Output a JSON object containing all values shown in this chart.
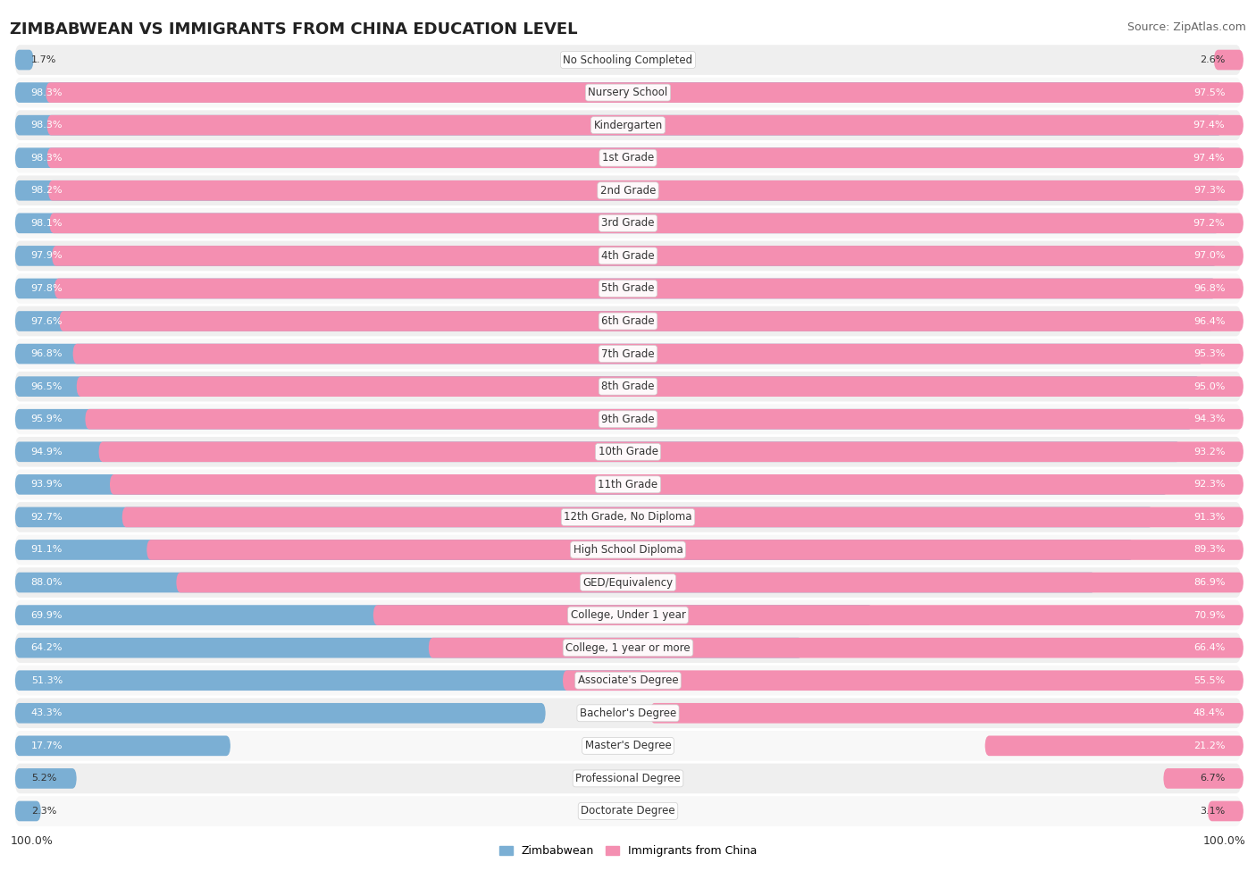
{
  "title": "ZIMBABWEAN VS IMMIGRANTS FROM CHINA EDUCATION LEVEL",
  "source": "Source: ZipAtlas.com",
  "categories": [
    "No Schooling Completed",
    "Nursery School",
    "Kindergarten",
    "1st Grade",
    "2nd Grade",
    "3rd Grade",
    "4th Grade",
    "5th Grade",
    "6th Grade",
    "7th Grade",
    "8th Grade",
    "9th Grade",
    "10th Grade",
    "11th Grade",
    "12th Grade, No Diploma",
    "High School Diploma",
    "GED/Equivalency",
    "College, Under 1 year",
    "College, 1 year or more",
    "Associate's Degree",
    "Bachelor's Degree",
    "Master's Degree",
    "Professional Degree",
    "Doctorate Degree"
  ],
  "zimbabwean": [
    1.7,
    98.3,
    98.3,
    98.3,
    98.2,
    98.1,
    97.9,
    97.8,
    97.6,
    96.8,
    96.5,
    95.9,
    94.9,
    93.9,
    92.7,
    91.1,
    88.0,
    69.9,
    64.2,
    51.3,
    43.3,
    17.7,
    5.2,
    2.3
  ],
  "china": [
    2.6,
    97.5,
    97.4,
    97.4,
    97.3,
    97.2,
    97.0,
    96.8,
    96.4,
    95.3,
    95.0,
    94.3,
    93.2,
    92.3,
    91.3,
    89.3,
    86.9,
    70.9,
    66.4,
    55.5,
    48.4,
    21.2,
    6.7,
    3.1
  ],
  "blue_color": "#7bafd4",
  "pink_color": "#f48fb1",
  "row_bg_even": "#efefef",
  "row_bg_odd": "#f8f8f8",
  "title_fontsize": 13,
  "source_fontsize": 9,
  "label_fontsize": 8.5,
  "value_fontsize": 8,
  "legend_label_zim": "Zimbabwean",
  "legend_label_china": "Immigrants from China"
}
